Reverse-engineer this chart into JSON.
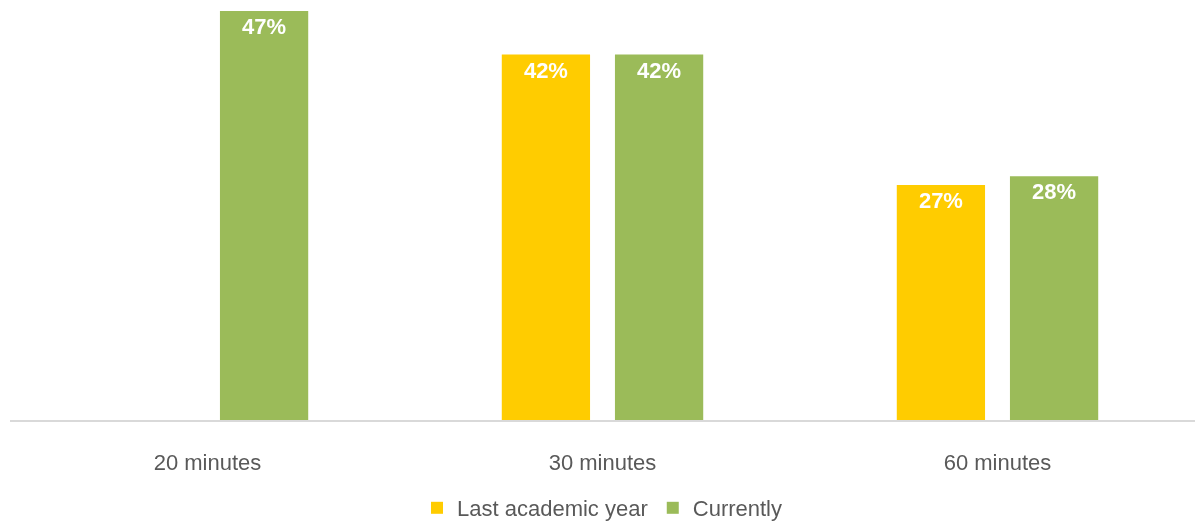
{
  "chart_data": {
    "type": "bar",
    "categories": [
      "20 minutes",
      "30 minutes",
      "60 minutes"
    ],
    "series": [
      {
        "name": "Last academic year",
        "color": "#ffcc00",
        "values": [
          null,
          42,
          27
        ],
        "value_labels": [
          null,
          "42%",
          "27%"
        ]
      },
      {
        "name": "Currently",
        "color": "#9bbb59",
        "values": [
          47,
          42,
          28
        ],
        "value_labels": [
          "47%",
          "42%",
          "28%"
        ]
      }
    ],
    "legend": "bottom"
  }
}
